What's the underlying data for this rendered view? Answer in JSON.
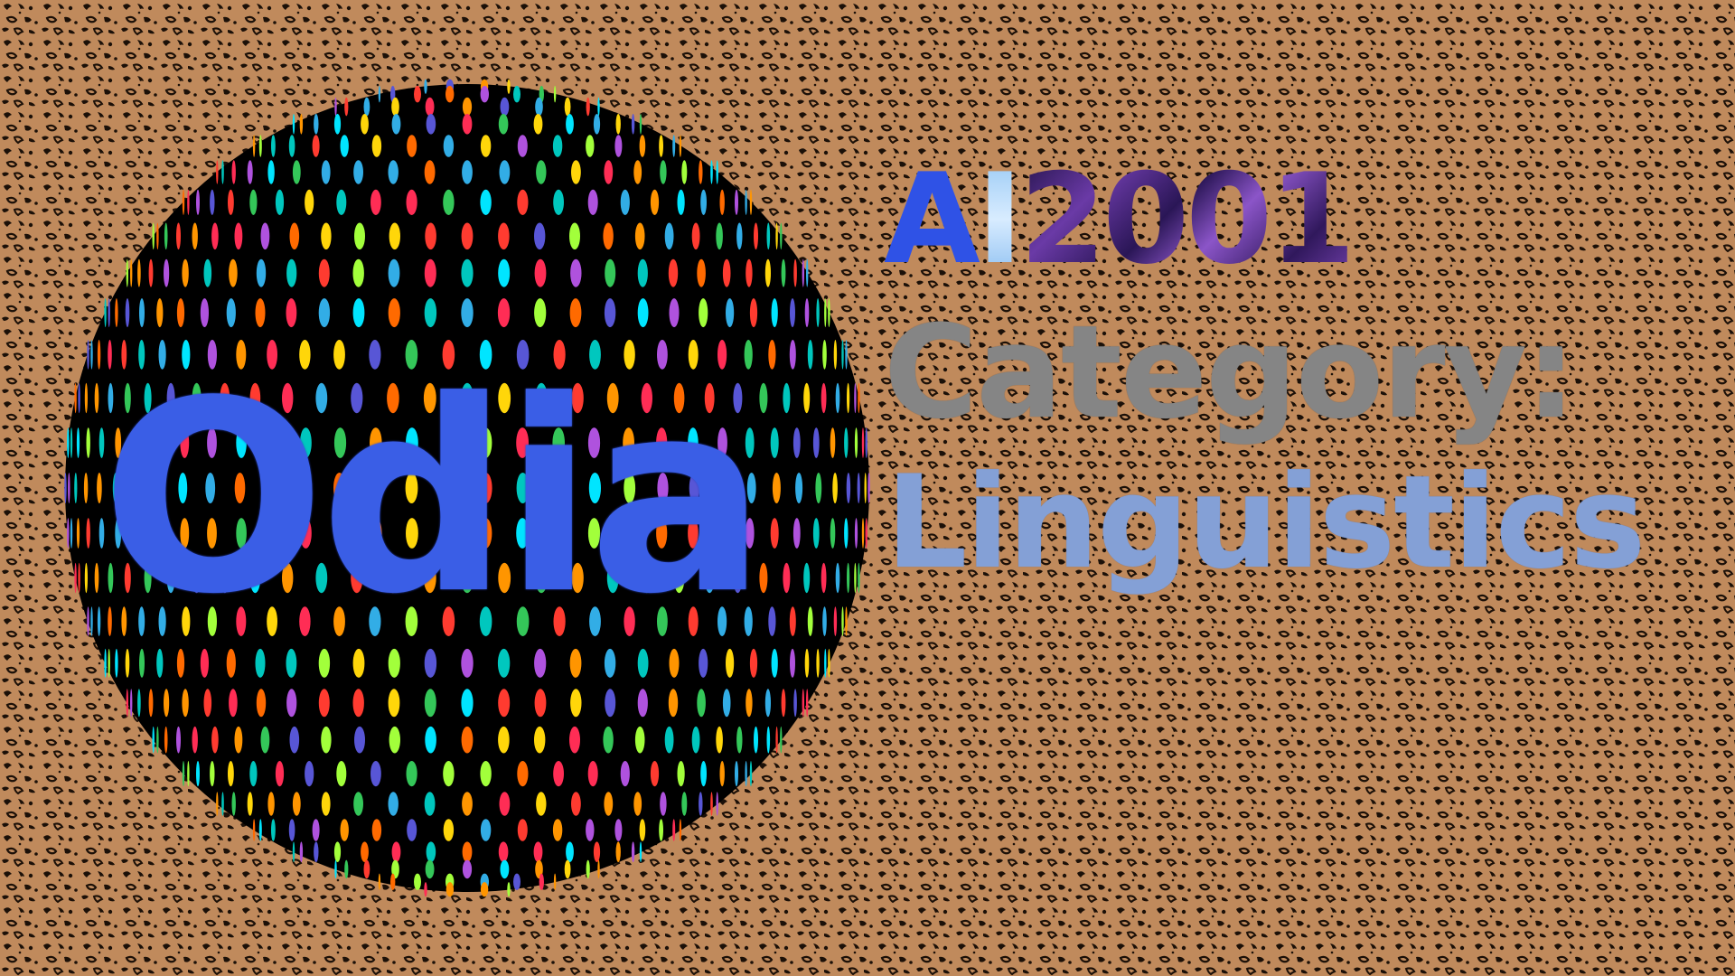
{
  "title": {
    "language": "Odia",
    "brand_prefix_a": "A",
    "brand_prefix_i": "I",
    "brand_year": "2001",
    "category_label": "Category:",
    "category_value": "Linguistics"
  },
  "colors": {
    "background_base": "#c08a5c",
    "background_spots": "#1b1008",
    "sphere_body": "#000000",
    "language_text": "#3a5ee6",
    "brand_blue": "#2f52e6",
    "brand_purple": "#6a3aa6",
    "category_label": "#858585",
    "category_value": "#84a0d6"
  },
  "graphics": {
    "background_pattern": "leopard-print-pattern",
    "sphere_style": "disco-dotted-sphere",
    "dot_colors": [
      "#ff3b30",
      "#ff9500",
      "#ffd60a",
      "#34c759",
      "#00c7be",
      "#32ade6",
      "#5856d6",
      "#af52de",
      "#ff2d55",
      "#a2ff3b",
      "#ff6a00",
      "#00e5ff"
    ]
  }
}
